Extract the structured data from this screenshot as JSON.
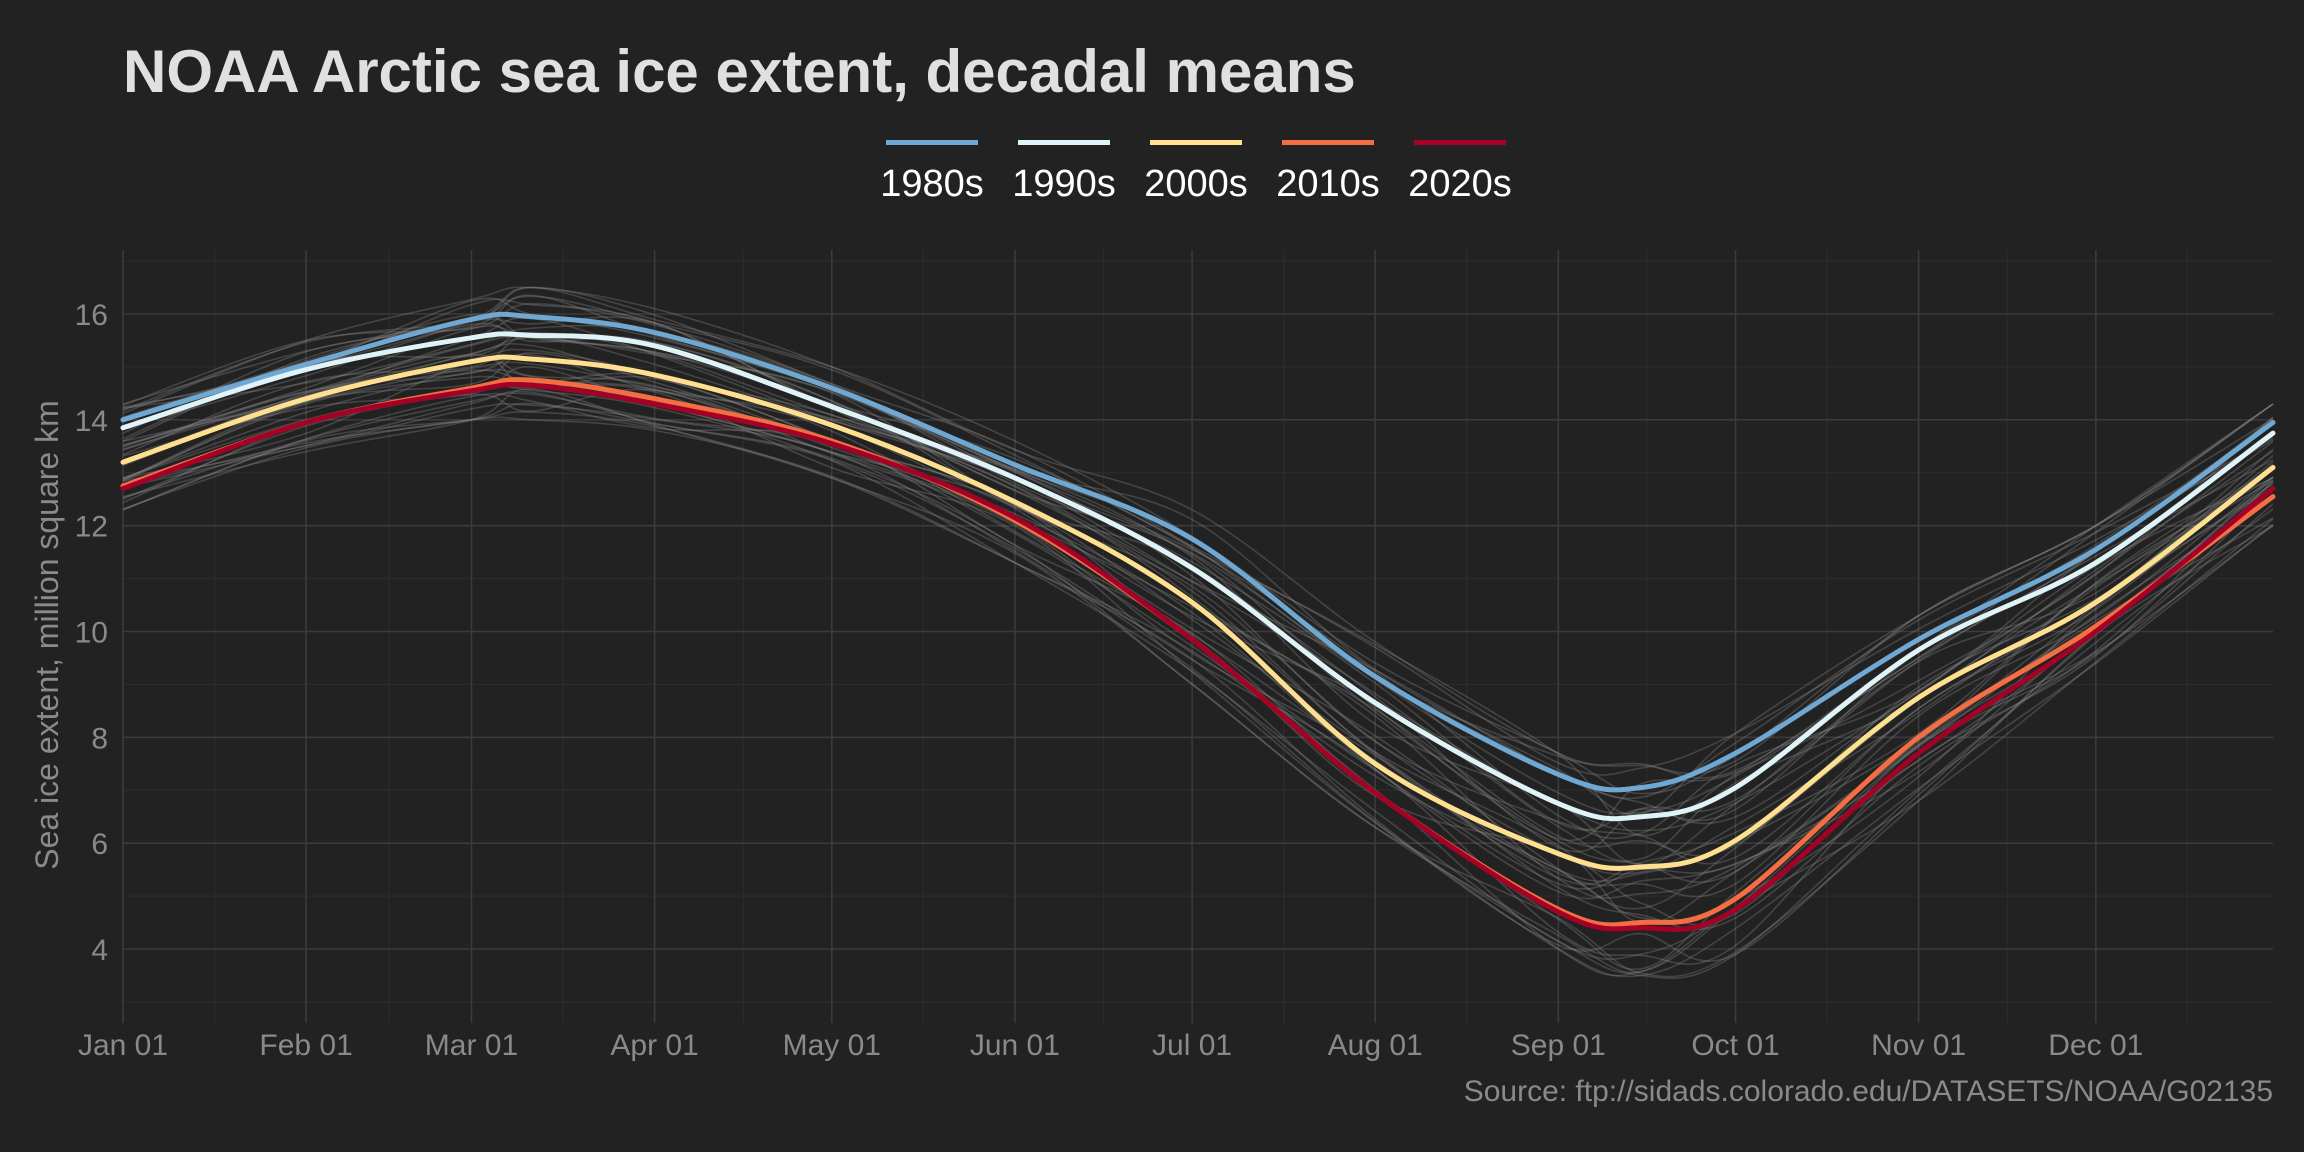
{
  "chart_data": {
    "type": "line",
    "title": "NOAA Arctic sea ice extent, decadal means",
    "xlabel": "",
    "ylabel": "Sea ice extent, million square km",
    "caption": "Source: ftp://sidads.colorado.edu/DATASETS/NOAA/G02135",
    "x_unit": "day_of_year",
    "xlim": [
      1,
      365
    ],
    "ylim": [
      2.8,
      17.2
    ],
    "y_ticks": [
      4,
      6,
      8,
      10,
      12,
      14,
      16
    ],
    "x_ticks": [
      {
        "label": "Jan 01",
        "day": 1
      },
      {
        "label": "Feb 01",
        "day": 32
      },
      {
        "label": "Mar 01",
        "day": 60
      },
      {
        "label": "Apr 01",
        "day": 91
      },
      {
        "label": "May 01",
        "day": 121
      },
      {
        "label": "Jun 01",
        "day": 152
      },
      {
        "label": "Jul 01",
        "day": 182
      },
      {
        "label": "Aug 01",
        "day": 213
      },
      {
        "label": "Sep 01",
        "day": 244
      },
      {
        "label": "Oct 01",
        "day": 274
      },
      {
        "label": "Nov 01",
        "day": 305
      },
      {
        "label": "Dec 01",
        "day": 335
      }
    ],
    "grid": true,
    "legend_position": "top",
    "x": [
      1,
      32,
      60,
      70,
      91,
      121,
      152,
      182,
      213,
      244,
      258,
      274,
      305,
      335,
      365
    ],
    "series": [
      {
        "name": "1980s",
        "color": "#6fa8d2",
        "values": [
          14.0,
          15.05,
          15.9,
          15.95,
          15.65,
          14.6,
          13.15,
          11.75,
          9.15,
          7.3,
          7.05,
          7.7,
          9.85,
          11.55,
          13.95
        ]
      },
      {
        "name": "1990s",
        "color": "#e0f3f8",
        "values": [
          13.85,
          14.95,
          15.55,
          15.6,
          15.4,
          14.25,
          12.9,
          11.2,
          8.65,
          6.75,
          6.5,
          7.05,
          9.65,
          11.3,
          13.75
        ]
      },
      {
        "name": "2000s",
        "color": "#fee090",
        "values": [
          13.2,
          14.4,
          15.1,
          15.15,
          14.85,
          13.9,
          12.45,
          10.55,
          7.5,
          5.8,
          5.55,
          6.05,
          8.75,
          10.55,
          13.1
        ]
      },
      {
        "name": "2010s",
        "color": "#f46d43",
        "values": [
          12.75,
          13.95,
          14.6,
          14.75,
          14.4,
          13.6,
          12.1,
          9.85,
          6.95,
          4.75,
          4.5,
          4.95,
          8.0,
          10.1,
          12.55
        ]
      },
      {
        "name": "2020s",
        "color": "#a50026",
        "values": [
          12.7,
          13.95,
          14.55,
          14.65,
          14.3,
          13.55,
          12.15,
          9.85,
          6.95,
          4.7,
          4.4,
          4.75,
          7.7,
          10.0,
          12.7
        ]
      }
    ],
    "background_series": {
      "description": "individual yearly traces (grey)",
      "color": "#8c8c8c",
      "count": 40,
      "envelope_min": [
        12.3,
        13.4,
        14.0,
        14.0,
        13.8,
        12.9,
        11.3,
        9.0,
        6.3,
        4.0,
        3.5,
        3.9,
        6.8,
        9.4,
        12.0
      ],
      "envelope_max": [
        14.3,
        15.5,
        16.3,
        16.5,
        16.1,
        15.0,
        13.6,
        12.3,
        9.8,
        7.7,
        7.5,
        8.3,
        10.3,
        12.0,
        14.3
      ]
    }
  },
  "colors": {
    "background": "#222222",
    "grid": "#3b3b3b",
    "text_muted": "#8a8a8a",
    "title": "#e0e0e0"
  }
}
